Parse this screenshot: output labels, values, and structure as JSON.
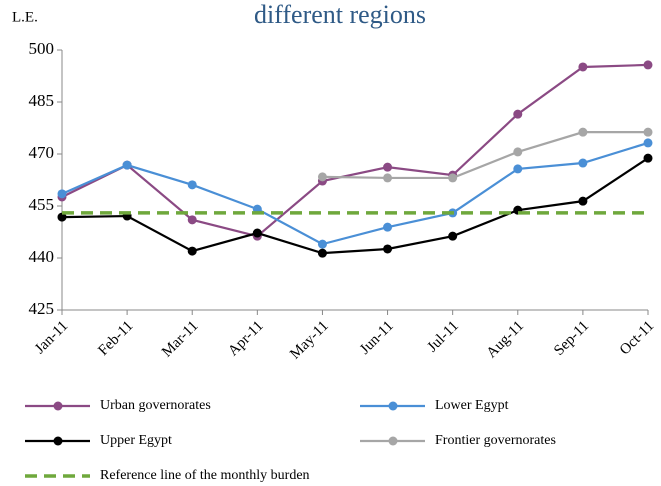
{
  "chart_data": {
    "type": "line",
    "title": "different regions",
    "y_label": "L.E.",
    "categories": [
      "Jan-11",
      "Feb-11",
      "Mar-11",
      "Apr-11",
      "May-11",
      "Jun-11",
      "Jul-11",
      "Aug-11",
      "Sep-11",
      "Oct-11"
    ],
    "ylim": [
      425,
      500
    ],
    "yticks": [
      425,
      440,
      455,
      470,
      485,
      500
    ],
    "series": [
      {
        "name": "Urban governorates",
        "color": "#8b4a84",
        "marker": true,
        "values": [
          457.6,
          466.8,
          451.0,
          446.3,
          462.2,
          466.2,
          463.9,
          481.5,
          495.1,
          495.7
        ]
      },
      {
        "name": "Lower Egypt",
        "color": "#4a8fd6",
        "marker": true,
        "values": [
          458.5,
          466.8,
          461.1,
          454.1,
          444.0,
          448.9,
          453.0,
          465.7,
          467.4,
          473.2
        ]
      },
      {
        "name": "Upper Egypt",
        "color": "#000000",
        "marker": true,
        "values": [
          451.8,
          452.1,
          442.0,
          447.2,
          441.4,
          442.6,
          446.3,
          453.8,
          456.4,
          468.8
        ]
      },
      {
        "name": "Frontier governorates",
        "color": "#a6a6a6",
        "marker": true,
        "values": [
          null,
          null,
          null,
          null,
          463.4,
          463.1,
          463.1,
          470.6,
          476.3,
          476.3
        ]
      },
      {
        "name": "Reference line of the monthly burden",
        "color": "#6fa83c",
        "dashed": true,
        "values": [
          453,
          453,
          453,
          453,
          453,
          453,
          453,
          453,
          453,
          453
        ]
      }
    ]
  }
}
